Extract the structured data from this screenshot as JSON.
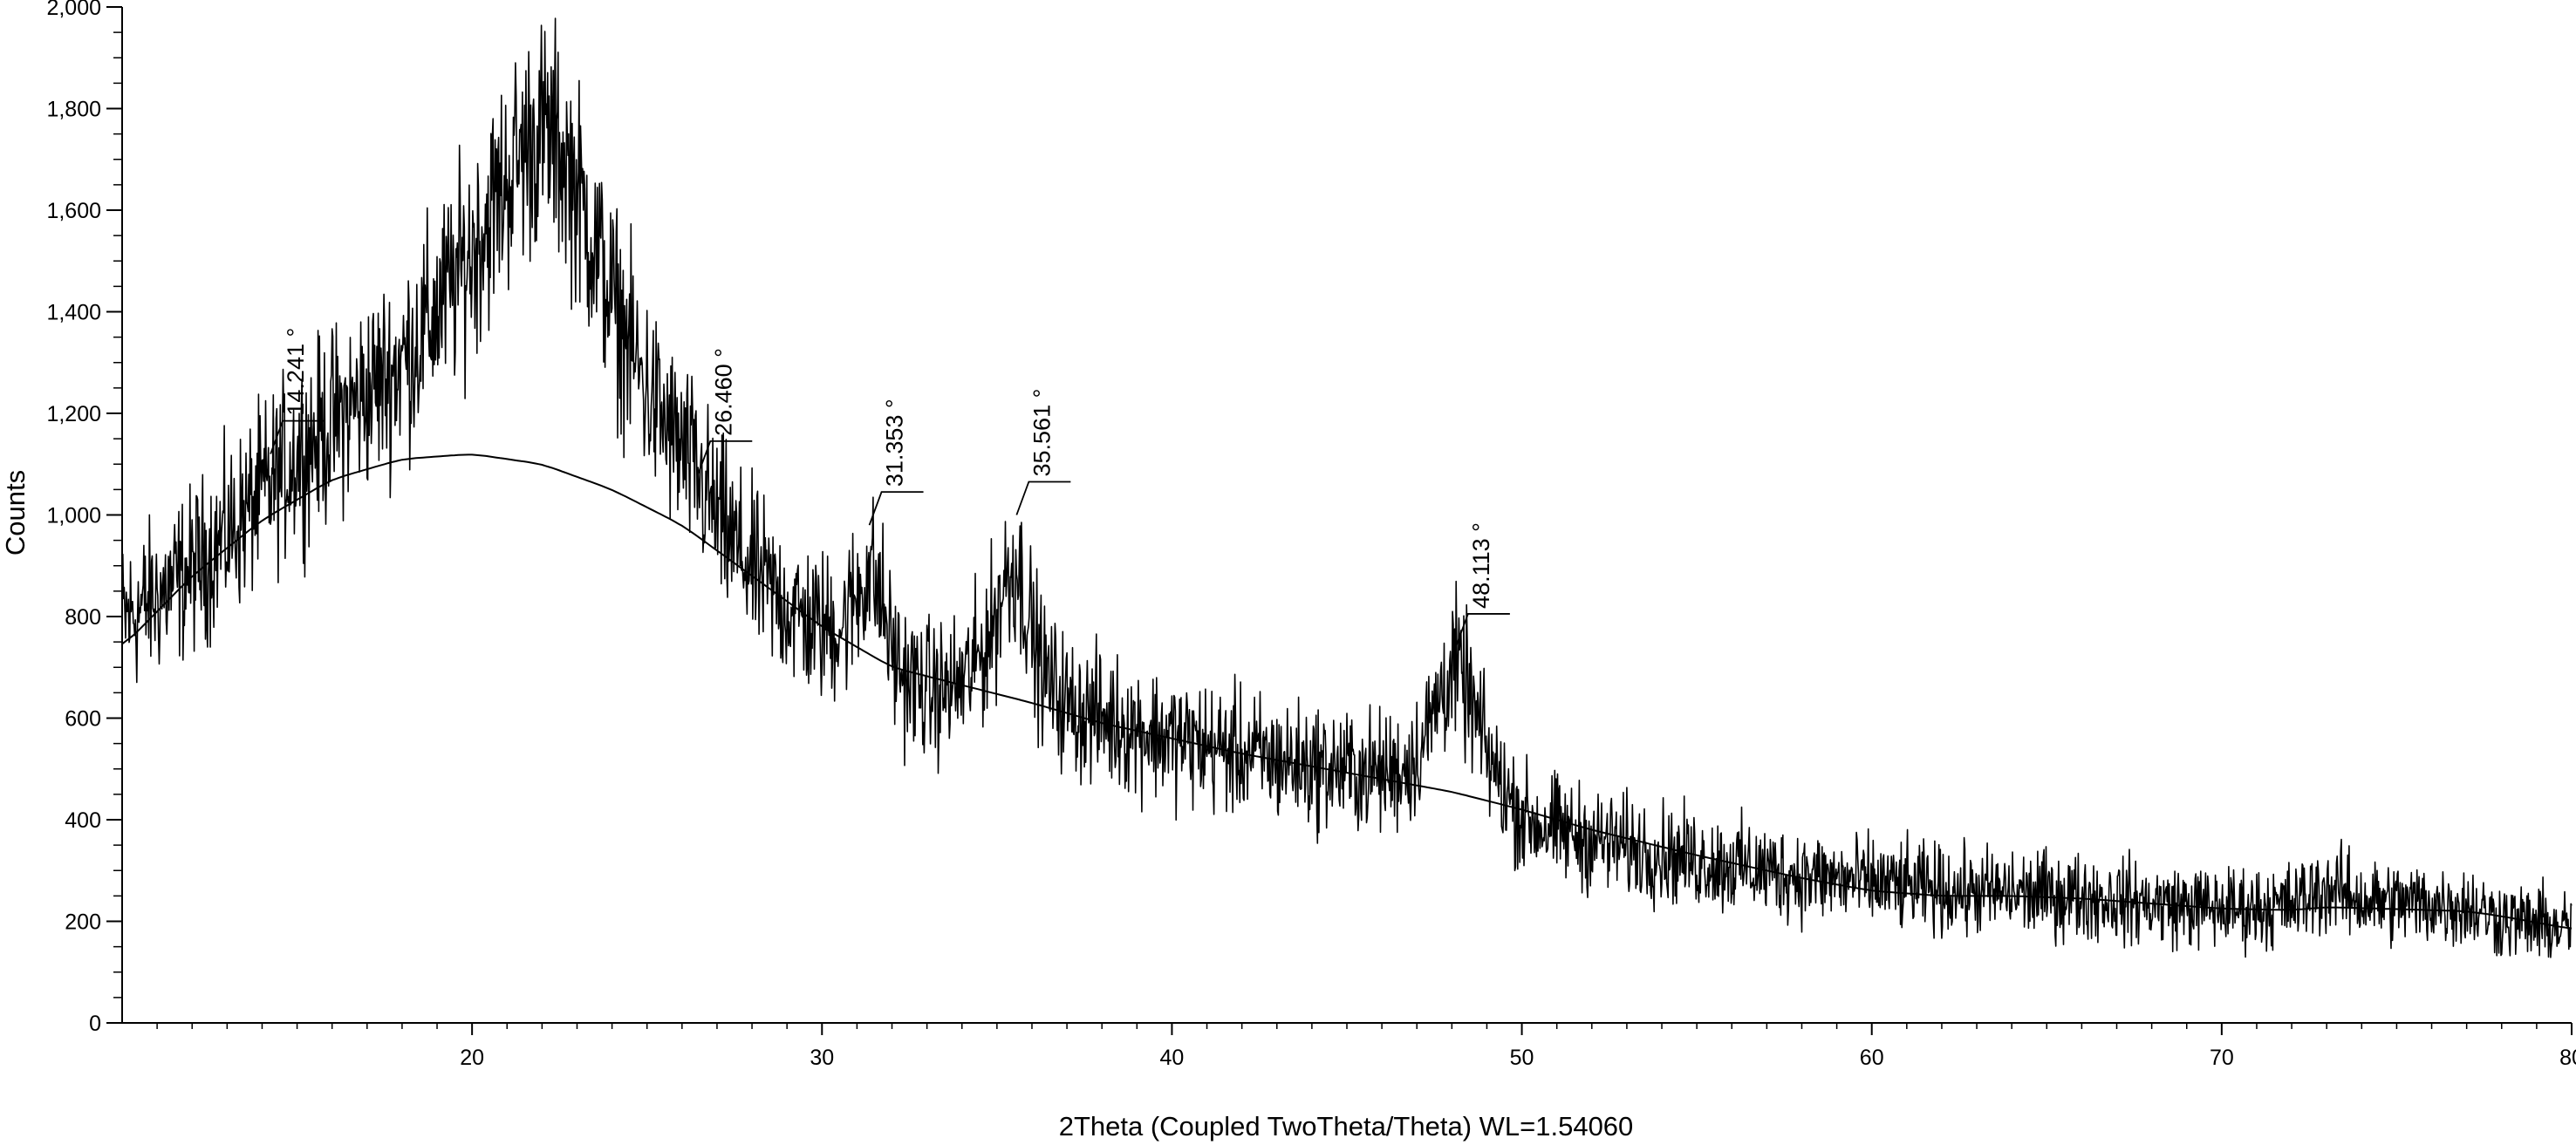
{
  "chart_data": {
    "type": "line",
    "title": "",
    "xlabel": "2Theta (Coupled TwoTheta/Theta) WL=1.54060",
    "ylabel": "Counts",
    "xlim": [
      10,
      80
    ],
    "ylim": [
      0,
      2000
    ],
    "x_ticks": [
      20,
      30,
      40,
      50,
      60,
      70,
      80
    ],
    "x_tick_labels": [
      "20",
      "30",
      "40",
      "50",
      "60",
      "70",
      "80"
    ],
    "y_ticks": [
      0,
      200,
      400,
      600,
      800,
      1000,
      1200,
      1400,
      1600,
      1800,
      2000
    ],
    "y_tick_labels": [
      "0",
      "200",
      "400",
      "600",
      "800",
      "1,000",
      "1,200",
      "1,400",
      "1,600",
      "1,800",
      "2,000"
    ],
    "grid": false,
    "series": [
      {
        "role": "pattern",
        "x": [
          10,
          11,
          12,
          13,
          14,
          15,
          16,
          17,
          18,
          19,
          20,
          21,
          21.5,
          22,
          22.5,
          23,
          24,
          25,
          26,
          26.46,
          27,
          28,
          29,
          30,
          31,
          31.35,
          32,
          33,
          34,
          35,
          35.56,
          36,
          37,
          38,
          40,
          42,
          44,
          46,
          47,
          48.11,
          49,
          50,
          52,
          55,
          58,
          60,
          62,
          64,
          66,
          68,
          70,
          72,
          73,
          74,
          76,
          77,
          78,
          80
        ],
        "y": [
          790,
          840,
          890,
          960,
          1040,
          1120,
          1180,
          1240,
          1300,
          1400,
          1520,
          1660,
          1730,
          1760,
          1730,
          1640,
          1420,
          1240,
          1120,
          1080,
          990,
          890,
          820,
          770,
          800,
          980,
          700,
          650,
          660,
          780,
          1000,
          720,
          620,
          600,
          560,
          530,
          505,
          490,
          510,
          740,
          520,
          400,
          360,
          320,
          290,
          275,
          260,
          255,
          250,
          235,
          225,
          230,
          270,
          240,
          235,
          230,
          205,
          185
        ]
      },
      {
        "role": "background",
        "x": [
          10,
          12,
          14,
          16,
          18,
          20,
          22,
          24,
          26,
          28,
          30,
          32,
          34,
          36,
          38,
          40,
          42,
          44,
          46,
          48,
          50,
          52,
          55,
          58,
          60,
          62,
          64,
          66,
          68,
          70,
          72,
          73,
          74,
          76,
          77,
          78,
          80
        ],
        "y": [
          740,
          880,
          990,
          1070,
          1110,
          1120,
          1100,
          1050,
          980,
          880,
          780,
          700,
          665,
          630,
          590,
          560,
          530,
          505,
          480,
          455,
          420,
          380,
          330,
          285,
          260,
          250,
          250,
          245,
          235,
          225,
          222,
          228,
          226,
          222,
          220,
          210,
          185
        ]
      }
    ],
    "annotations": [
      {
        "x": 14.241,
        "y": 1120,
        "label": "14.241 °"
      },
      {
        "x": 26.46,
        "y": 1080,
        "label": "26.460 °"
      },
      {
        "x": 31.353,
        "y": 980,
        "label": "31.353 °"
      },
      {
        "x": 35.561,
        "y": 1000,
        "label": "35.561 °"
      },
      {
        "x": 48.113,
        "y": 740,
        "label": "48.113 °"
      }
    ]
  }
}
